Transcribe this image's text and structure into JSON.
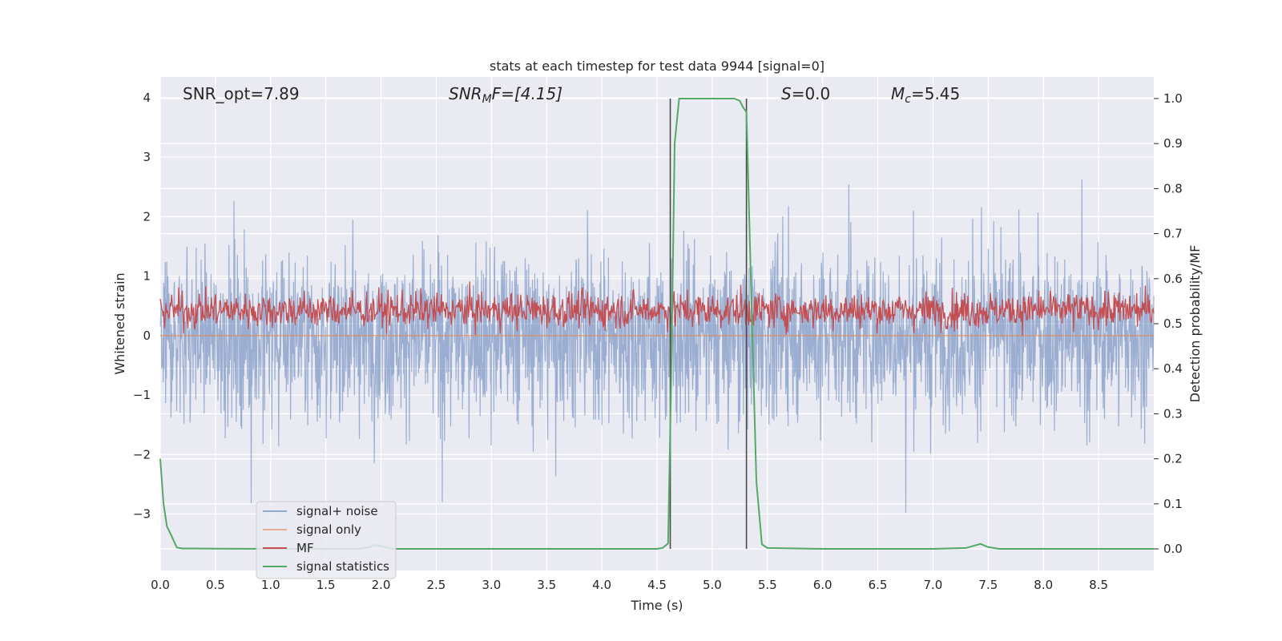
{
  "chart_data": {
    "type": "line",
    "title": "stats at each timestep for test data 9944 [signal=0]",
    "xlabel": "Time (s)",
    "ylabel_left": "Whitened strain",
    "ylabel_right": "Detection probability/MF",
    "xlim": [
      0.0,
      9.0
    ],
    "ylim_left": [
      -3.95,
      4.35
    ],
    "ylim_right": [
      -0.048,
      1.048
    ],
    "x_ticks": [
      0.0,
      0.5,
      1.0,
      1.5,
      2.0,
      2.5,
      3.0,
      3.5,
      4.0,
      4.5,
      5.0,
      5.5,
      6.0,
      6.5,
      7.0,
      7.5,
      8.0,
      8.5
    ],
    "x_tick_labels": [
      "0.0",
      "0.5",
      "1.0",
      "1.5",
      "2.0",
      "2.5",
      "3.0",
      "3.5",
      "4.0",
      "4.5",
      "5.0",
      "5.5",
      "6.0",
      "6.5",
      "7.0",
      "7.5",
      "8.0",
      "8.5"
    ],
    "y_ticks_left": [
      4,
      3,
      2,
      1,
      0,
      -1,
      -2,
      -3
    ],
    "y_tick_labels_left": [
      "4",
      "3",
      "2",
      "1",
      "0",
      "−1",
      "−2",
      "−3"
    ],
    "y_ticks_right": [
      1.0,
      0.9,
      0.8,
      0.7,
      0.6,
      0.5,
      0.4,
      0.3,
      0.2,
      0.1,
      0.0
    ],
    "y_tick_labels_right": [
      "1.0",
      "0.9",
      "0.8",
      "0.7",
      "0.6",
      "0.5",
      "0.4",
      "0.3",
      "0.2",
      "0.1",
      "0.0"
    ],
    "grid": true,
    "annotations": {
      "snr_opt": "SNR_opt=7.89",
      "snr_mf_main": "SNR",
      "snr_mf_sub": "M",
      "snr_mf_rest": "F=[4.15]",
      "s_main": "S",
      "s_rest": "=0.0",
      "mc_main": "M",
      "mc_sub": "c",
      "mc_rest": "=5.45"
    },
    "vertical_lines_x": [
      4.62,
      5.31
    ],
    "legend": {
      "location": "lower left",
      "entries": [
        "signal+ noise",
        "signal only",
        "MF",
        "signal statistics"
      ]
    },
    "series": [
      {
        "name": "signal+ noise",
        "axis": "left",
        "color": "#4c72b0",
        "alpha": 0.5,
        "description_range": [
          -3.6,
          3.4
        ]
      },
      {
        "name": "signal only",
        "axis": "left",
        "color": "#dd8452",
        "values_constant": 0.0
      },
      {
        "name": "MF",
        "axis": "right",
        "color": "#c44e52",
        "description_range": [
          0.47,
          0.6
        ]
      },
      {
        "name": "signal statistics",
        "axis": "right",
        "color": "#55a868",
        "x": [
          0.0,
          0.03,
          0.06,
          0.1,
          0.15,
          0.2,
          0.3,
          0.5,
          1.0,
          1.5,
          1.8,
          1.9,
          1.95,
          2.0,
          2.1,
          2.5,
          3.0,
          4.0,
          4.5,
          4.55,
          4.6,
          4.63,
          4.66,
          4.7,
          4.8,
          5.0,
          5.2,
          5.25,
          5.28,
          5.31,
          5.35,
          5.4,
          5.45,
          5.5,
          6.0,
          7.0,
          7.3,
          7.43,
          7.5,
          7.6,
          8.0,
          9.0
        ],
        "y": [
          0.2,
          0.1,
          0.05,
          0.03,
          0.003,
          0.001,
          0.001,
          0.0005,
          0.0,
          0.0,
          0.0,
          0.004,
          0.009,
          0.006,
          0.0,
          0.0,
          0.0,
          0.0,
          0.0,
          0.002,
          0.012,
          0.4,
          0.9,
          1.0,
          1.0,
          1.0,
          1.0,
          0.995,
          0.98,
          0.97,
          0.6,
          0.15,
          0.01,
          0.002,
          0.0,
          0.0,
          0.002,
          0.011,
          0.004,
          0.0,
          0.0,
          0.0
        ]
      }
    ]
  }
}
